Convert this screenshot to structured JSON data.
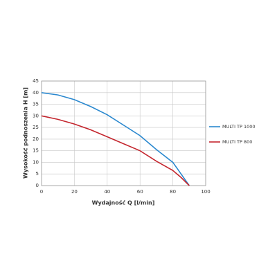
{
  "chart_data": {
    "type": "line",
    "x_label": "Wydajność Q [l/min]",
    "y_label": "Wysokość podnoszenia H [m]",
    "x": [
      0,
      10,
      20,
      30,
      40,
      50,
      60,
      70,
      80,
      85,
      90
    ],
    "series": [
      {
        "name": "MULTI TP 1000",
        "color": "#2a88cf",
        "values": [
          40,
          39,
          37,
          34,
          30.5,
          26,
          21.5,
          15.5,
          10,
          5,
          0
        ]
      },
      {
        "name": "MULTI TP 800",
        "color": "#c4262e",
        "values": [
          30,
          28.5,
          26.5,
          24,
          21,
          18,
          15,
          10.5,
          6.5,
          3.5,
          0
        ]
      }
    ],
    "xlim": [
      0,
      100
    ],
    "xticks": [
      0,
      20,
      40,
      60,
      80,
      100
    ],
    "ylim": [
      0,
      45
    ],
    "yticks": [
      0,
      5,
      10,
      15,
      20,
      25,
      30,
      35,
      40,
      45
    ],
    "grid": true,
    "legend": "right"
  }
}
